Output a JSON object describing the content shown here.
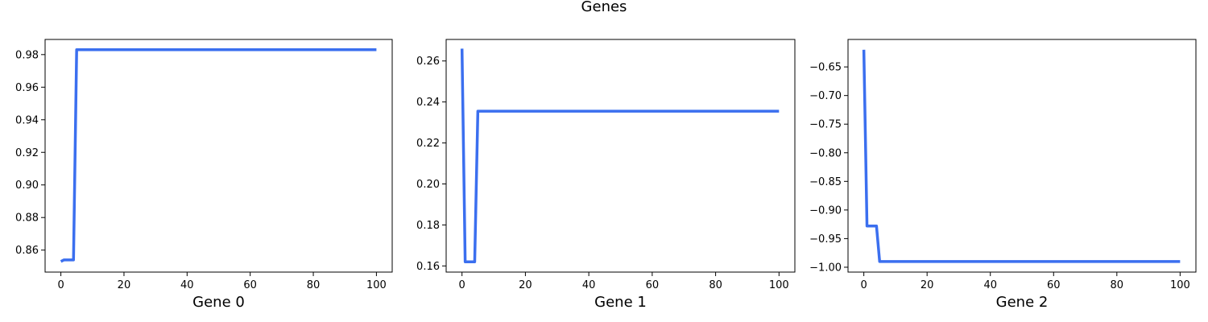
{
  "figure": {
    "title": "Genes"
  },
  "colors": {
    "line": "#3b6fef",
    "axes": "#000000",
    "background": "#ffffff"
  },
  "chart_data": [
    {
      "type": "line",
      "title": "",
      "xlabel": "Gene 0",
      "ylabel": "",
      "xlim": [
        -5,
        105
      ],
      "ylim": [
        0.8465,
        0.9893
      ],
      "xticks": [
        0,
        20,
        40,
        60,
        80,
        100
      ],
      "yticks": [
        0.86,
        0.88,
        0.9,
        0.92,
        0.94,
        0.96,
        0.98
      ],
      "ytick_labels": [
        "0.86",
        "0.88",
        "0.90",
        "0.92",
        "0.94",
        "0.96",
        "0.98"
      ],
      "grid": false,
      "series": [
        {
          "x": [
            0,
            1,
            4,
            5,
            100
          ],
          "y": [
            0.853,
            0.854,
            0.854,
            0.983,
            0.983
          ]
        }
      ]
    },
    {
      "type": "line",
      "title": "",
      "xlabel": "Gene 1",
      "ylabel": "",
      "xlim": [
        -5,
        105
      ],
      "ylim": [
        0.157,
        0.2705
      ],
      "xticks": [
        0,
        20,
        40,
        60,
        80,
        100
      ],
      "yticks": [
        0.16,
        0.18,
        0.2,
        0.22,
        0.24,
        0.26
      ],
      "ytick_labels": [
        "0.16",
        "0.18",
        "0.20",
        "0.22",
        "0.24",
        "0.26"
      ],
      "grid": false,
      "series": [
        {
          "x": [
            0,
            1,
            4,
            5,
            100
          ],
          "y": [
            0.266,
            0.162,
            0.162,
            0.2355,
            0.2355
          ]
        }
      ]
    },
    {
      "type": "line",
      "title": "",
      "xlabel": "Gene 2",
      "ylabel": "",
      "xlim": [
        -5,
        105
      ],
      "ylim": [
        -1.0085,
        -0.602
      ],
      "xticks": [
        0,
        20,
        40,
        60,
        80,
        100
      ],
      "yticks": [
        -1.0,
        -0.95,
        -0.9,
        -0.85,
        -0.8,
        -0.75,
        -0.7,
        -0.65
      ],
      "ytick_labels": [
        "−1.00",
        "−0.95",
        "−0.90",
        "−0.85",
        "−0.80",
        "−0.75",
        "−0.70",
        "−0.65"
      ],
      "grid": false,
      "series": [
        {
          "x": [
            0,
            1,
            4,
            5,
            100
          ],
          "y": [
            -0.62,
            -0.928,
            -0.928,
            -0.99,
            -0.99
          ]
        }
      ]
    }
  ]
}
